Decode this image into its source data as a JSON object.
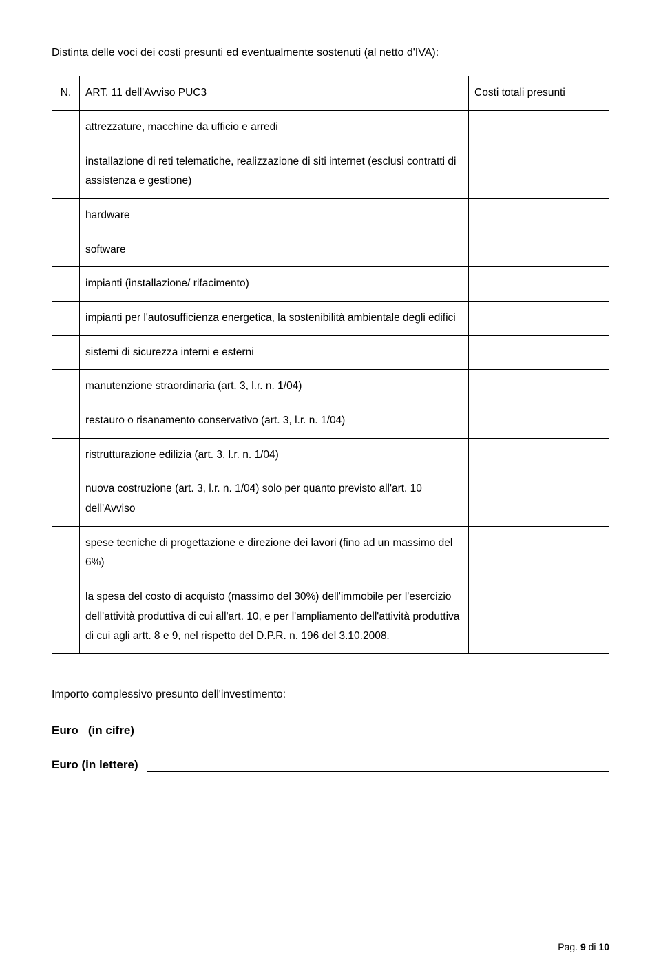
{
  "intro": "Distinta delle voci dei costi presunti ed eventualmente sostenuti (al netto d'IVA):",
  "table": {
    "header": {
      "n": "N.",
      "art": "ART. 11 dell'Avviso  PUC3",
      "cost": "Costi totali presunti"
    },
    "rows": [
      "attrezzature,  macchine da ufficio e arredi",
      "installazione di reti telematiche, realizzazione di siti internet    (esclusi contratti di assistenza e gestione)",
      "hardware",
      "software",
      "impianti (installazione/ rifacimento)",
      "impianti per l'autosufficienza energetica, la sostenibilità ambientale degli edifici",
      "sistemi di sicurezza interni e esterni",
      "manutenzione straordinaria (art. 3, l.r. n. 1/04)",
      "restauro o risanamento conservativo (art. 3, l.r. n. 1/04)",
      "ristrutturazione edilizia (art. 3, l.r. n. 1/04)",
      "nuova costruzione (art. 3, l.r. n. 1/04) solo per quanto previsto all'art. 10 dell'Avviso",
      "spese tecniche di progettazione e direzione dei lavori (fino ad un massimo del 6%)",
      "la spesa del costo di acquisto (massimo del 30%) dell'immobile per l'esercizio dell'attività produttiva di cui all'art. 10, e per l'ampliamento dell'attività produttiva di cui agli artt. 8 e 9, nel rispetto del D.P.R. n. 196 del 3.10.2008."
    ]
  },
  "footer_line": "Importo complessivo presunto dell'investimento:",
  "euro_cifre": "Euro   (in cifre)",
  "euro_lettere": "Euro (in lettere)",
  "page_label_prefix": "Pag. ",
  "page_current": "9",
  "page_sep": " di ",
  "page_total": "10"
}
